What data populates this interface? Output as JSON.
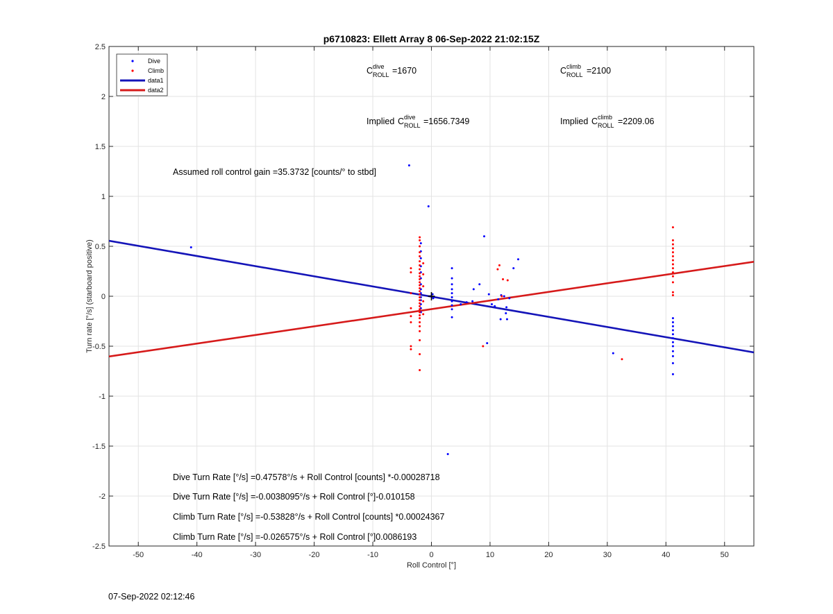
{
  "chart_data": {
    "type": "scatter",
    "title": "p6710823: Ellett Array 8 06-Sep-2022 21:02:15Z",
    "xlabel": "Roll Control [°]",
    "ylabel": "Turn rate [°/s] (starboard positive)",
    "xlim": [
      -55,
      55
    ],
    "ylim": [
      -2.5,
      2.5
    ],
    "xticks": [
      -50,
      -40,
      -30,
      -20,
      -10,
      0,
      10,
      20,
      30,
      40,
      50
    ],
    "yticks": [
      -2.5,
      -2,
      -1.5,
      -1,
      -0.5,
      0,
      0.5,
      1,
      1.5,
      2,
      2.5
    ],
    "xtick_labels": [
      "-50",
      "-40",
      "-30",
      "-20",
      "-10",
      "0",
      "10",
      "20",
      "30",
      "40",
      "50"
    ],
    "ytick_labels": [
      "-2.5",
      "-2",
      "-1.5",
      "-1",
      "-0.5",
      "0",
      "0.5",
      "1",
      "1.5",
      "2",
      "2.5"
    ],
    "grid": true,
    "legend": {
      "placement": "top-left",
      "entries": [
        {
          "label": "Dive",
          "kind": "marker",
          "color": "#0000ff"
        },
        {
          "label": "Climb",
          "kind": "marker",
          "color": "#ff0000"
        },
        {
          "label": "data1",
          "kind": "line",
          "color": "#1414b8"
        },
        {
          "label": "data2",
          "kind": "line",
          "color": "#d61a1a"
        }
      ]
    },
    "series": [
      {
        "name": "Dive",
        "kind": "scatter",
        "color": "#0000ff",
        "points": [
          [
            -41,
            0.49
          ],
          [
            -3.8,
            1.31
          ],
          [
            -0.5,
            0.9
          ],
          [
            2.8,
            -1.58
          ],
          [
            9,
            0.6
          ],
          [
            8.2,
            0.12
          ],
          [
            9.5,
            -0.47
          ],
          [
            -1.8,
            0.53
          ],
          [
            -1.8,
            0.45
          ],
          [
            -1.8,
            0.38
          ],
          [
            -1.8,
            0.3
          ],
          [
            -1.8,
            0.24
          ],
          [
            -1.8,
            0.18
          ],
          [
            -1.8,
            0.12
          ],
          [
            -1.8,
            0.07
          ],
          [
            -1.8,
            0.03
          ],
          [
            -1.8,
            -0.01
          ],
          [
            -1.8,
            -0.04
          ],
          [
            -1.8,
            -0.08
          ],
          [
            -1.8,
            -0.12
          ],
          [
            -1.8,
            -0.16
          ],
          [
            3.5,
            0.28
          ],
          [
            3.5,
            0.18
          ],
          [
            3.5,
            0.12
          ],
          [
            3.5,
            0.07
          ],
          [
            3.5,
            0.03
          ],
          [
            3.5,
            -0.01
          ],
          [
            3.5,
            -0.05
          ],
          [
            3.5,
            -0.09
          ],
          [
            3.5,
            -0.13
          ],
          [
            3.5,
            -0.21
          ],
          [
            0.2,
            0.02
          ],
          [
            0.3,
            -0.02
          ],
          [
            -0.2,
            0.0
          ],
          [
            5,
            -0.08
          ],
          [
            6,
            -0.06
          ],
          [
            7,
            -0.05
          ],
          [
            7.2,
            0.07
          ],
          [
            9.8,
            0.02
          ],
          [
            10.3,
            -0.08
          ],
          [
            10.8,
            -0.1
          ],
          [
            11.4,
            -0.03
          ],
          [
            11.8,
            -0.23
          ],
          [
            11.9,
            0.01
          ],
          [
            12.4,
            0.0
          ],
          [
            12.8,
            -0.11
          ],
          [
            12.7,
            -0.17
          ],
          [
            12.9,
            -0.23
          ],
          [
            13.3,
            -0.02
          ],
          [
            14,
            0.28
          ],
          [
            14.8,
            0.37
          ],
          [
            31,
            -0.57
          ],
          [
            41.2,
            -0.22
          ],
          [
            41.2,
            -0.26
          ],
          [
            41.2,
            -0.3
          ],
          [
            41.2,
            -0.34
          ],
          [
            41.2,
            -0.38
          ],
          [
            41.2,
            -0.42
          ],
          [
            41.2,
            -0.46
          ],
          [
            41.2,
            -0.5
          ],
          [
            41.2,
            -0.55
          ],
          [
            41.2,
            -0.6
          ],
          [
            41.2,
            -0.67
          ],
          [
            41.2,
            -0.78
          ]
        ]
      },
      {
        "name": "Climb",
        "kind": "scatter",
        "color": "#ff0000",
        "points": [
          [
            -3.5,
            0.28
          ],
          [
            -3.5,
            0.24
          ],
          [
            -3.5,
            0.03
          ],
          [
            -3.5,
            -0.12
          ],
          [
            -3.5,
            -0.2
          ],
          [
            -3.5,
            -0.26
          ],
          [
            -3.5,
            -0.5
          ],
          [
            -3.5,
            -0.53
          ],
          [
            -2,
            0.59
          ],
          [
            -2,
            0.56
          ],
          [
            -2,
            0.5
          ],
          [
            -2,
            0.44
          ],
          [
            -2,
            0.4
          ],
          [
            -2,
            0.35
          ],
          [
            -2,
            0.31
          ],
          [
            -2,
            0.27
          ],
          [
            -2,
            0.23
          ],
          [
            -2,
            0.2
          ],
          [
            -2,
            0.17
          ],
          [
            -2,
            0.14
          ],
          [
            -2,
            0.11
          ],
          [
            -2,
            0.08
          ],
          [
            -2,
            0.05
          ],
          [
            -2,
            0.02
          ],
          [
            -2,
            -0.01
          ],
          [
            -2,
            -0.04
          ],
          [
            -2,
            -0.07
          ],
          [
            -2,
            -0.1
          ],
          [
            -2,
            -0.13
          ],
          [
            -2,
            -0.16
          ],
          [
            -2,
            -0.19
          ],
          [
            -2,
            -0.22
          ],
          [
            -2,
            -0.26
          ],
          [
            -2,
            -0.3
          ],
          [
            -2,
            -0.35
          ],
          [
            -2,
            -0.44
          ],
          [
            -2,
            -0.58
          ],
          [
            -2,
            -0.74
          ],
          [
            -1.4,
            0.33
          ],
          [
            -1.4,
            0.22
          ],
          [
            -1.4,
            0.1
          ],
          [
            -1.4,
            -0.05
          ],
          [
            -1.4,
            -0.18
          ],
          [
            8.8,
            -0.5
          ],
          [
            11.3,
            0.27
          ],
          [
            11.6,
            0.31
          ],
          [
            12.2,
            0.17
          ],
          [
            13,
            0.16
          ],
          [
            12,
            0.0
          ],
          [
            32.5,
            -0.63
          ],
          [
            41.2,
            0.69
          ],
          [
            41.2,
            0.56
          ],
          [
            41.2,
            0.52
          ],
          [
            41.2,
            0.48
          ],
          [
            41.2,
            0.44
          ],
          [
            41.2,
            0.4
          ],
          [
            41.2,
            0.36
          ],
          [
            41.2,
            0.32
          ],
          [
            41.2,
            0.28
          ],
          [
            41.2,
            0.24
          ],
          [
            41.2,
            0.2
          ],
          [
            41.2,
            0.14
          ],
          [
            41.2,
            0.04
          ],
          [
            41.2,
            0.01
          ]
        ]
      },
      {
        "name": "data1",
        "kind": "line",
        "color": "#1414b8",
        "points": [
          [
            -55,
            0.555
          ],
          [
            55,
            -0.562
          ]
        ]
      },
      {
        "name": "data2",
        "kind": "line",
        "color": "#d61a1a",
        "points": [
          [
            -55,
            -0.603
          ],
          [
            55,
            0.345
          ]
        ]
      }
    ],
    "crosshair": {
      "x": 0,
      "y": 0
    },
    "annotations": {
      "c_dive": {
        "base": "C",
        "sup": "dive",
        "sub": "ROLL",
        "value": "=1670"
      },
      "c_climb": {
        "base": "C",
        "sup": "climb",
        "sub": "ROLL",
        "value": "=2100"
      },
      "implied_dive": {
        "prefix": "Implied ",
        "base": "C",
        "sup": "dive",
        "sub": "ROLL",
        "value": "=1656.7349"
      },
      "implied_climb": {
        "prefix": "Implied ",
        "base": "C",
        "sup": "climb",
        "sub": "ROLL",
        "value": "=2209.06"
      },
      "gain": "Assumed roll control gain =35.3732 [counts/° to stbd]",
      "eq1": "Dive Turn Rate [°/s] =0.47578°/s + Roll Control [counts] *-0.00028718",
      "eq2": "Dive Turn Rate [°/s] =-0.0038095°/s + Roll Control [°]-0.010158",
      "eq3": "Climb Turn Rate [°/s] =-0.53828°/s + Roll Control [counts] *0.00024367",
      "eq4": "Climb Turn Rate [°/s] =-0.026575°/s + Roll Control [°]0.0086193"
    }
  },
  "timestamp": "07-Sep-2022 02:12:46"
}
